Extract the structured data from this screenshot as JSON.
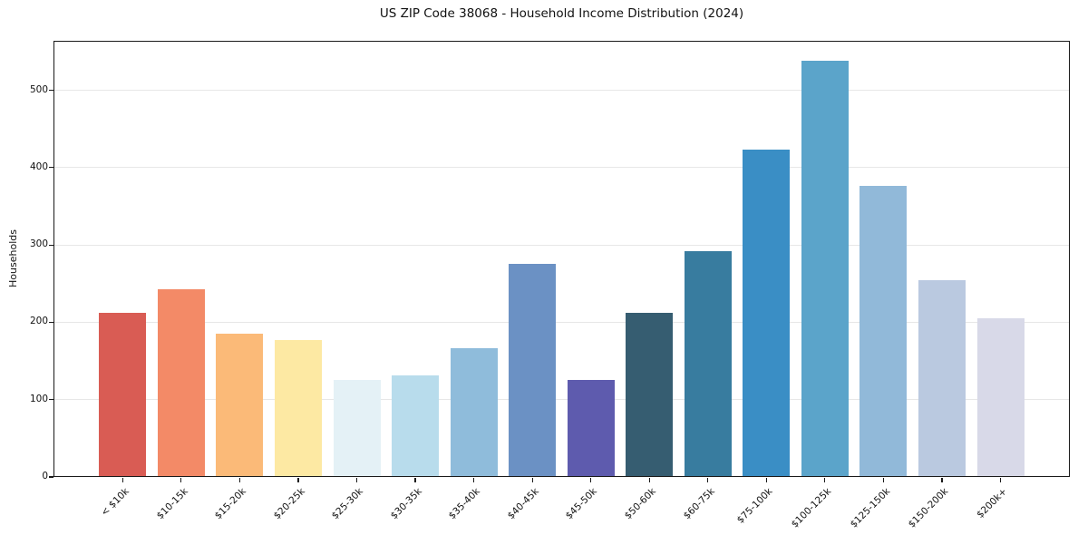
{
  "chart_data": {
    "type": "bar",
    "title": "US ZIP Code 38068 - Household Income Distribution (2024)",
    "xlabel": "",
    "ylabel": "Households",
    "categories": [
      "< $10k",
      "$10-15k",
      "$15-20k",
      "$20-25k",
      "$25-30k",
      "$30-35k",
      "$35-40k",
      "$40-45k",
      "$45-50k",
      "$50-60k",
      "$60-75k",
      "$75-100k",
      "$100-125k",
      "$125-150k",
      "$150-200k",
      "$200k+"
    ],
    "values": [
      212,
      243,
      185,
      177,
      125,
      131,
      167,
      276,
      126,
      212,
      292,
      423,
      538,
      376,
      254,
      205
    ],
    "bar_colors": [
      "#d95c54",
      "#f38a67",
      "#fbba78",
      "#fde9a3",
      "#e4f1f6",
      "#b8dcec",
      "#8fbcdb",
      "#6b91c4",
      "#5e5bae",
      "#365d71",
      "#387c9f",
      "#3a8ec5",
      "#5ba4ca",
      "#91b9d9",
      "#bac9e0",
      "#d8d9e8"
    ],
    "yticks": [
      0,
      100,
      200,
      300,
      400,
      500
    ],
    "ylim": [
      0,
      564
    ],
    "grid": "horizontal-only",
    "gridline_color": "#e7e7e7",
    "x_tick_rotation_deg": 45,
    "legend": "none",
    "background": "#ffffff"
  }
}
